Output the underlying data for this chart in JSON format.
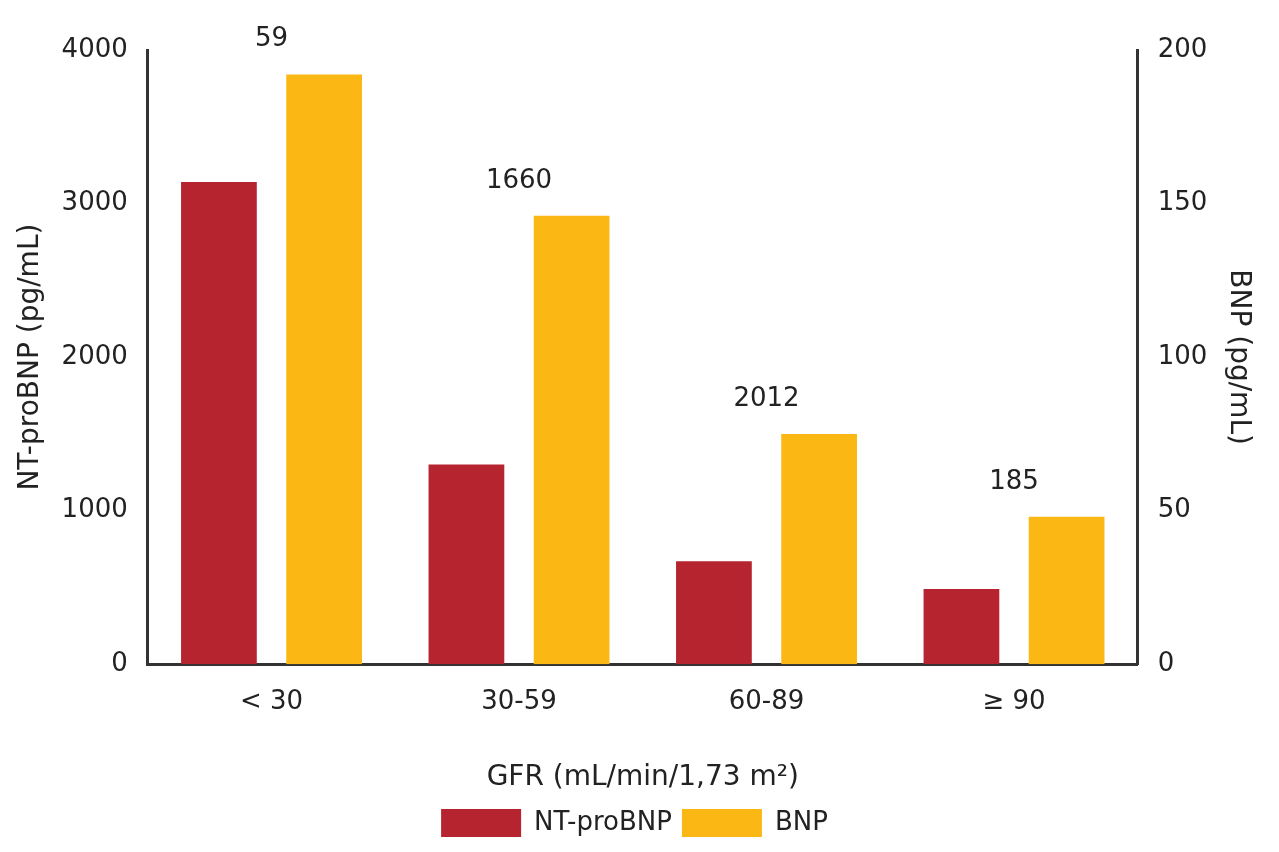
{
  "chart_data": {
    "type": "bar",
    "categories": [
      "< 30",
      "30-59",
      "60-89",
      "≥ 90"
    ],
    "series": [
      {
        "name": "NT-proBNP",
        "color": "#b5242f",
        "values": [
          3140,
          1300,
          670,
          490
        ]
      },
      {
        "name": "BNP",
        "color": "#fbb714",
        "values": [
          192,
          146,
          75,
          48
        ],
        "axis": "y2"
      }
    ],
    "xlabel": "GFR (mL/min/1,73 m²)",
    "ylabel": "NT-proBNP (pg/mL)",
    "y2label": "BNP (pg/mL)",
    "ylim": [
      0,
      4000
    ],
    "yticks": [
      0,
      1000,
      2000,
      3000,
      4000
    ],
    "y2lim": [
      0,
      200
    ],
    "y2ticks": [
      0,
      50,
      100,
      150,
      200
    ],
    "annotations": [
      "59",
      "1660",
      "2012",
      "185"
    ],
    "grid": false,
    "legend": "bottom"
  }
}
